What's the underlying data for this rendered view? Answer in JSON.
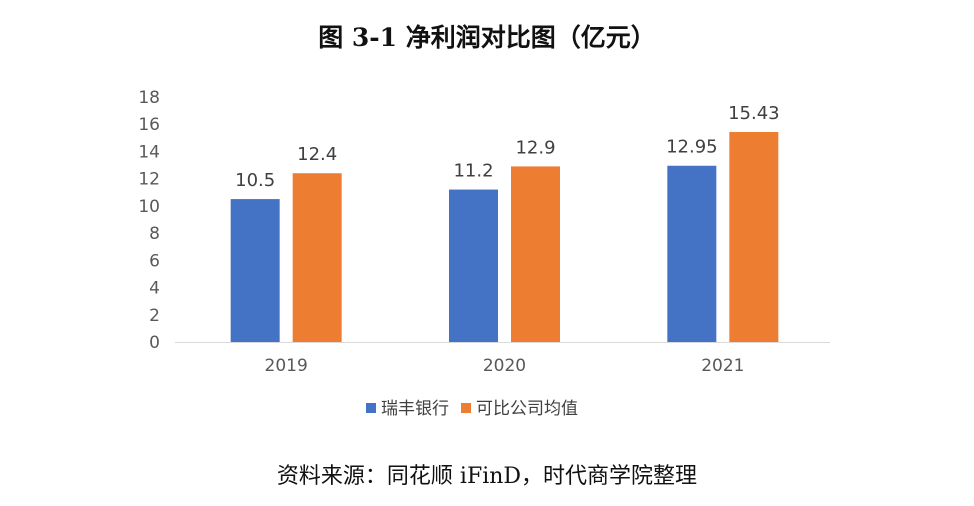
{
  "chart_data": {
    "type": "bar",
    "title": "图 3-1 净利润对比图（亿元）",
    "categories": [
      "2019",
      "2020",
      "2021"
    ],
    "series": [
      {
        "name": "瑞丰银行",
        "values": [
          10.5,
          11.2,
          12.95
        ],
        "labels": [
          "10.5",
          "11.2",
          "12.95"
        ],
        "color": "#4472C4"
      },
      {
        "name": "可比公司均值",
        "values": [
          12.4,
          12.9,
          15.43
        ],
        "labels": [
          "12.4",
          "12.9",
          "15.43"
        ],
        "color": "#ED7D31"
      }
    ],
    "yticks": [
      "0",
      "2",
      "4",
      "6",
      "8",
      "10",
      "12",
      "14",
      "16",
      "18"
    ],
    "ylim": [
      0,
      18
    ],
    "grid": false,
    "legend": "bottom",
    "xlabel": "",
    "ylabel": ""
  },
  "source": "资料来源：同花顺 iFinD，时代商学院整理"
}
